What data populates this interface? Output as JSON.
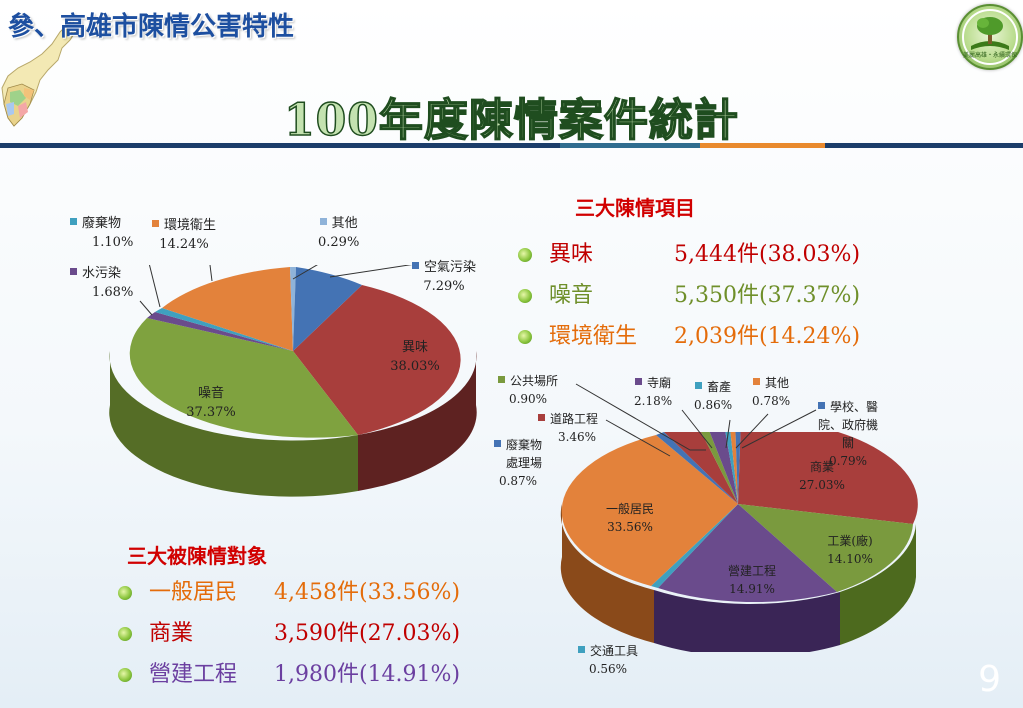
{
  "header": {
    "section_title": "參、高雄市陳情公害特性",
    "main_title": "100年度陳情案件統計",
    "logo_text": "美麗高雄・永續環保"
  },
  "colors": {
    "red": "#a83e3c",
    "green": "#7a9a3e",
    "orange": "#e3823b",
    "blue": "#4473b4",
    "purple": "#6a4b8c",
    "teal": "#3fa0bf",
    "lightblue": "#8fb3d9",
    "rule": [
      "#1b3d6a",
      "#2f6c8f",
      "#e98a2e",
      "#1b3d6a"
    ]
  },
  "pie1_labels": {
    "waste": {
      "name": "廢棄物",
      "pct": "1.10%"
    },
    "env_hygiene": {
      "name": "環境衛生",
      "pct": "14.24%"
    },
    "other": {
      "name": "其他",
      "pct": "0.29%"
    },
    "water": {
      "name": "水污染",
      "pct": "1.68%"
    },
    "air": {
      "name": "空氣污染",
      "pct": "7.29%"
    },
    "odor": {
      "name": "異味",
      "pct": "38.03%"
    },
    "noise": {
      "name": "噪音",
      "pct": "37.37%"
    }
  },
  "pie2_labels": {
    "public": {
      "name": "公共場所",
      "pct": "0.90%"
    },
    "temple": {
      "name": "寺廟",
      "pct": "2.18%"
    },
    "livestock": {
      "name": "畜產",
      "pct": "0.86%"
    },
    "other": {
      "name": "其他",
      "pct": "0.78%"
    },
    "school": {
      "name1": "學校、醫",
      "name2": "院、政府機",
      "name3": "關",
      "pct": "0.79%"
    },
    "road": {
      "name": "道路工程",
      "pct": "3.46%"
    },
    "waste_plant": {
      "name1": "廢棄物",
      "name2": "處理場",
      "pct": "0.87%"
    },
    "commerce": {
      "name": "商業",
      "pct": "27.03%"
    },
    "residents": {
      "name": "一般居民",
      "pct": "33.56%"
    },
    "industry": {
      "name": "工業(廠)",
      "pct": "14.10%"
    },
    "construction": {
      "name": "營建工程",
      "pct": "14.91%"
    },
    "transport": {
      "name": "交通工具",
      "pct": "0.56%"
    }
  },
  "top_items": {
    "heading": "三大陳情項目",
    "items": [
      {
        "name": "異味",
        "value": "5,444件(38.03%)",
        "color": "#c00000"
      },
      {
        "name": "噪音",
        "value": "5,350件(37.37%)",
        "color": "#6f8f2a"
      },
      {
        "name": "環境衛生",
        "value": "2,039件(14.24%)",
        "color": "#e46c0a"
      }
    ]
  },
  "top_targets": {
    "heading": "三大被陳情對象",
    "items": [
      {
        "name": "一般居民",
        "value": "4,458件(33.56%)",
        "color": "#e46c0a"
      },
      {
        "name": "商業",
        "value": "3,590件(27.03%)",
        "color": "#c00000"
      },
      {
        "name": "營建工程",
        "value": "1,980件(14.91%)",
        "color": "#6b3fa0"
      }
    ]
  },
  "page_number": "9"
}
